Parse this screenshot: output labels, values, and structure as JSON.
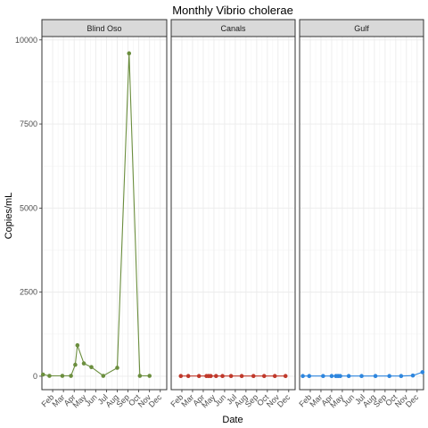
{
  "chart_data": {
    "type": "line",
    "title": "Monthly Vibrio cholerae",
    "xlabel": "Date",
    "ylabel": "Copies/mL",
    "ylim": [
      -400,
      10100
    ],
    "yticks": [
      0,
      2500,
      5000,
      7500,
      10000
    ],
    "ytick_labels": [
      "0",
      "2500",
      "5000",
      "7500",
      "10000"
    ],
    "xlim_month": [
      1.0,
      12.6
    ],
    "xticks": [
      {
        "label": "Feb",
        "month": 2
      },
      {
        "label": "Mar",
        "month": 3
      },
      {
        "label": "Apr",
        "month": 4
      },
      {
        "label": "May",
        "month": 5
      },
      {
        "label": "Jun",
        "month": 6
      },
      {
        "label": "Jul",
        "month": 7
      },
      {
        "label": "Aug",
        "month": 8
      },
      {
        "label": "Sep",
        "month": 9
      },
      {
        "label": "Oct",
        "month": 10
      },
      {
        "label": "Nov",
        "month": 11
      },
      {
        "label": "Dec",
        "month": 12
      }
    ],
    "grid": true,
    "facets": [
      {
        "name": "Blind Oso",
        "color": "#6b8e3e",
        "points": [
          {
            "month": 1.1,
            "y": 50
          },
          {
            "month": 1.7,
            "y": 10
          },
          {
            "month": 2.9,
            "y": 10
          },
          {
            "month": 3.7,
            "y": 10
          },
          {
            "month": 4.1,
            "y": 340
          },
          {
            "month": 4.3,
            "y": 920
          },
          {
            "month": 4.9,
            "y": 380
          },
          {
            "month": 5.6,
            "y": 270
          },
          {
            "month": 6.7,
            "y": 10
          },
          {
            "month": 8.0,
            "y": 250
          },
          {
            "month": 9.1,
            "y": 9600
          },
          {
            "month": 10.1,
            "y": 10
          },
          {
            "month": 11.0,
            "y": 10
          }
        ]
      },
      {
        "name": "Canals",
        "color": "#c0392b",
        "points": [
          {
            "month": 1.9,
            "y": 5
          },
          {
            "month": 2.6,
            "y": 5
          },
          {
            "month": 3.6,
            "y": 5
          },
          {
            "month": 4.3,
            "y": 5
          },
          {
            "month": 4.5,
            "y": 5
          },
          {
            "month": 4.7,
            "y": 5
          },
          {
            "month": 5.2,
            "y": 5
          },
          {
            "month": 5.8,
            "y": 5
          },
          {
            "month": 6.6,
            "y": 5
          },
          {
            "month": 7.6,
            "y": 5
          },
          {
            "month": 8.7,
            "y": 5
          },
          {
            "month": 9.7,
            "y": 5
          },
          {
            "month": 10.7,
            "y": 5
          },
          {
            "month": 11.7,
            "y": 5
          }
        ]
      },
      {
        "name": "Gulf",
        "color": "#2e86de",
        "points": [
          {
            "month": 1.3,
            "y": 5
          },
          {
            "month": 1.9,
            "y": 5
          },
          {
            "month": 3.2,
            "y": 5
          },
          {
            "month": 4.0,
            "y": 5
          },
          {
            "month": 4.4,
            "y": 5
          },
          {
            "month": 4.6,
            "y": 5
          },
          {
            "month": 4.8,
            "y": 5
          },
          {
            "month": 5.6,
            "y": 5
          },
          {
            "month": 6.8,
            "y": 5
          },
          {
            "month": 8.1,
            "y": 5
          },
          {
            "month": 9.4,
            "y": 5
          },
          {
            "month": 10.5,
            "y": 5
          },
          {
            "month": 11.6,
            "y": 20
          },
          {
            "month": 12.5,
            "y": 120
          }
        ]
      }
    ]
  }
}
